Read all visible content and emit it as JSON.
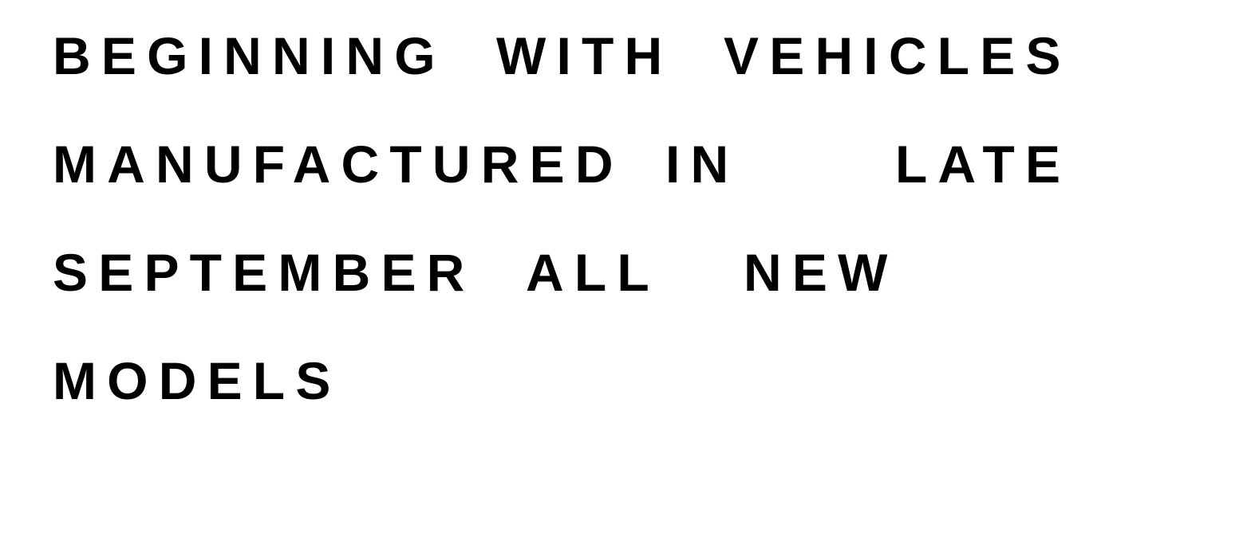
{
  "document": {
    "lines": [
      [
        "BEGINNING",
        "WITH",
        "VEHICLES"
      ],
      [
        "MANUFACTURED",
        "IN",
        "LATE"
      ],
      [
        "SEPTEMBER",
        "ALL",
        "NEW"
      ],
      [
        "MODELS"
      ]
    ]
  }
}
